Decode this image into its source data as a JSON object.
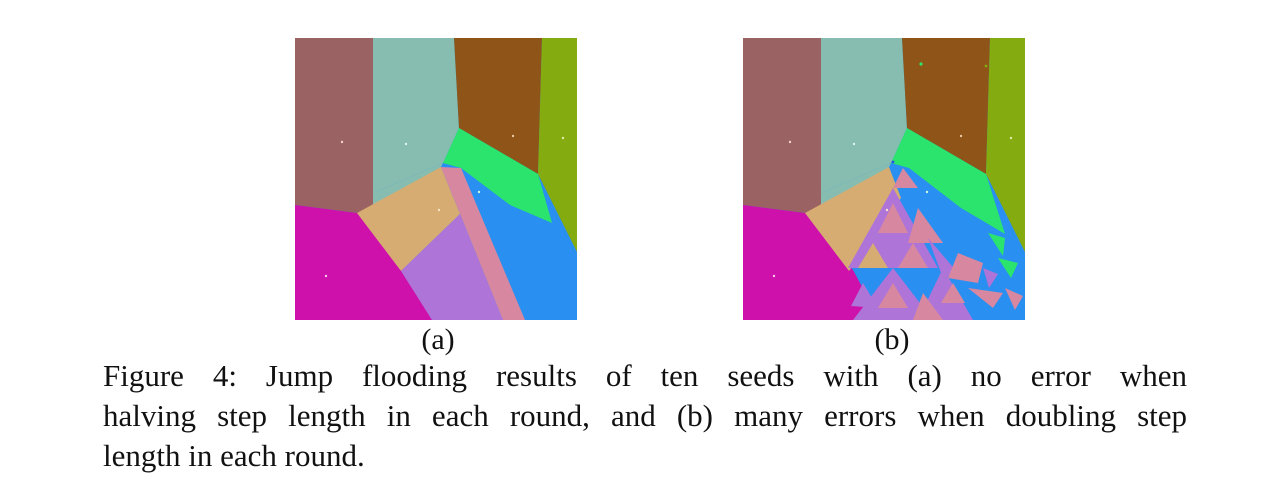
{
  "figure": {
    "panels": [
      {
        "id": "a",
        "label": "(a)",
        "description_colors": [
          "#9a6262",
          "#86bdb0",
          "#8f5417",
          "#84ac11",
          "#2be46d",
          "#298ff0",
          "#d788a0",
          "#ae74d8",
          "#d6ac72",
          "#cd11aa"
        ]
      },
      {
        "id": "b",
        "label": "(b)"
      }
    ],
    "caption": {
      "lines": [
        "Figure 4: Jump flooding results of ten seeds with (a) no error when",
        "halving step length in each round, and (b) many errors when doubling step",
        "length in each round."
      ]
    }
  }
}
